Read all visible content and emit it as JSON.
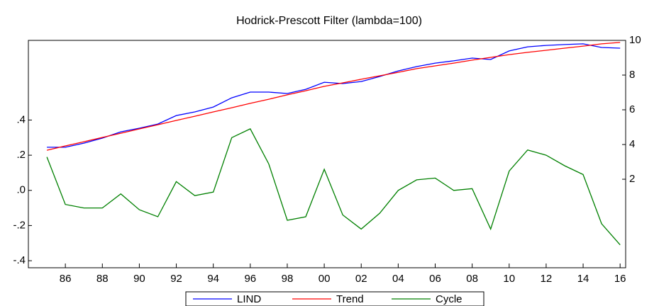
{
  "chart_data": {
    "type": "line",
    "title": "Hodrick-Prescott Filter (lambda=100)",
    "x": [
      1985,
      1986,
      1987,
      1988,
      1989,
      1990,
      1991,
      1992,
      1993,
      1994,
      1995,
      1996,
      1997,
      1998,
      1999,
      2000,
      2001,
      2002,
      2003,
      2004,
      2005,
      2006,
      2007,
      2008,
      2009,
      2010,
      2011,
      2012,
      2013,
      2014,
      2015,
      2016
    ],
    "series": [
      {
        "name": "LIND",
        "color": "#0000ff",
        "axis": "y2",
        "values": [
          3.84,
          3.84,
          4.08,
          4.37,
          4.73,
          4.94,
          5.18,
          5.67,
          5.88,
          6.16,
          6.69,
          7.02,
          7.02,
          6.94,
          7.18,
          7.59,
          7.51,
          7.63,
          7.92,
          8.24,
          8.49,
          8.69,
          8.82,
          8.98,
          8.9,
          9.39,
          9.63,
          9.71,
          9.76,
          9.8,
          9.59,
          9.55
        ]
      },
      {
        "name": "Trend",
        "color": "#ff0000",
        "axis": "y2",
        "values": [
          3.67,
          3.92,
          4.16,
          4.41,
          4.65,
          4.9,
          5.14,
          5.39,
          5.63,
          5.88,
          6.12,
          6.37,
          6.61,
          6.86,
          7.1,
          7.35,
          7.55,
          7.76,
          7.96,
          8.16,
          8.37,
          8.53,
          8.69,
          8.86,
          9.02,
          9.18,
          9.31,
          9.43,
          9.55,
          9.67,
          9.8,
          9.88
        ]
      },
      {
        "name": "Cycle",
        "color": "#008000",
        "values": [
          0.19,
          -0.08,
          -0.1,
          -0.1,
          -0.02,
          -0.11,
          -0.15,
          0.05,
          -0.03,
          -0.01,
          0.3,
          0.35,
          0.15,
          -0.17,
          -0.15,
          0.12,
          -0.14,
          -0.22,
          -0.13,
          0.0,
          0.06,
          0.07,
          0.0,
          0.01,
          -0.22,
          0.11,
          0.23,
          0.2,
          0.14,
          0.09,
          -0.19,
          -0.31
        ]
      }
    ],
    "xlim": [
      1984.0,
      2016.3
    ],
    "xticks": [
      {
        "value": 1986,
        "label": "86"
      },
      {
        "value": 1988,
        "label": "88"
      },
      {
        "value": 1990,
        "label": "90"
      },
      {
        "value": 1992,
        "label": "92"
      },
      {
        "value": 1994,
        "label": "94"
      },
      {
        "value": 1996,
        "label": "96"
      },
      {
        "value": 1998,
        "label": "98"
      },
      {
        "value": 2000,
        "label": "00"
      },
      {
        "value": 2002,
        "label": "02"
      },
      {
        "value": 2004,
        "label": "04"
      },
      {
        "value": 2006,
        "label": "06"
      },
      {
        "value": 2008,
        "label": "08"
      },
      {
        "value": 2010,
        "label": "10"
      },
      {
        "value": 2012,
        "label": "12"
      },
      {
        "value": 2014,
        "label": "14"
      },
      {
        "value": 2016,
        "label": "16"
      }
    ],
    "ylim": [
      -0.44,
      0.853
    ],
    "yticks": [
      {
        "value": 0.4,
        "label": ".4"
      },
      {
        "value": 0.2,
        "label": ".2"
      },
      {
        "value": 0,
        "label": ".0"
      },
      {
        "value": -0.2,
        "label": "-.2"
      },
      {
        "value": -0.4,
        "label": "-.4"
      }
    ],
    "y2lim": [
      -3.1,
      10
    ],
    "y2ticks": [
      2,
      4,
      6,
      8,
      10
    ],
    "legend": "bottom"
  }
}
